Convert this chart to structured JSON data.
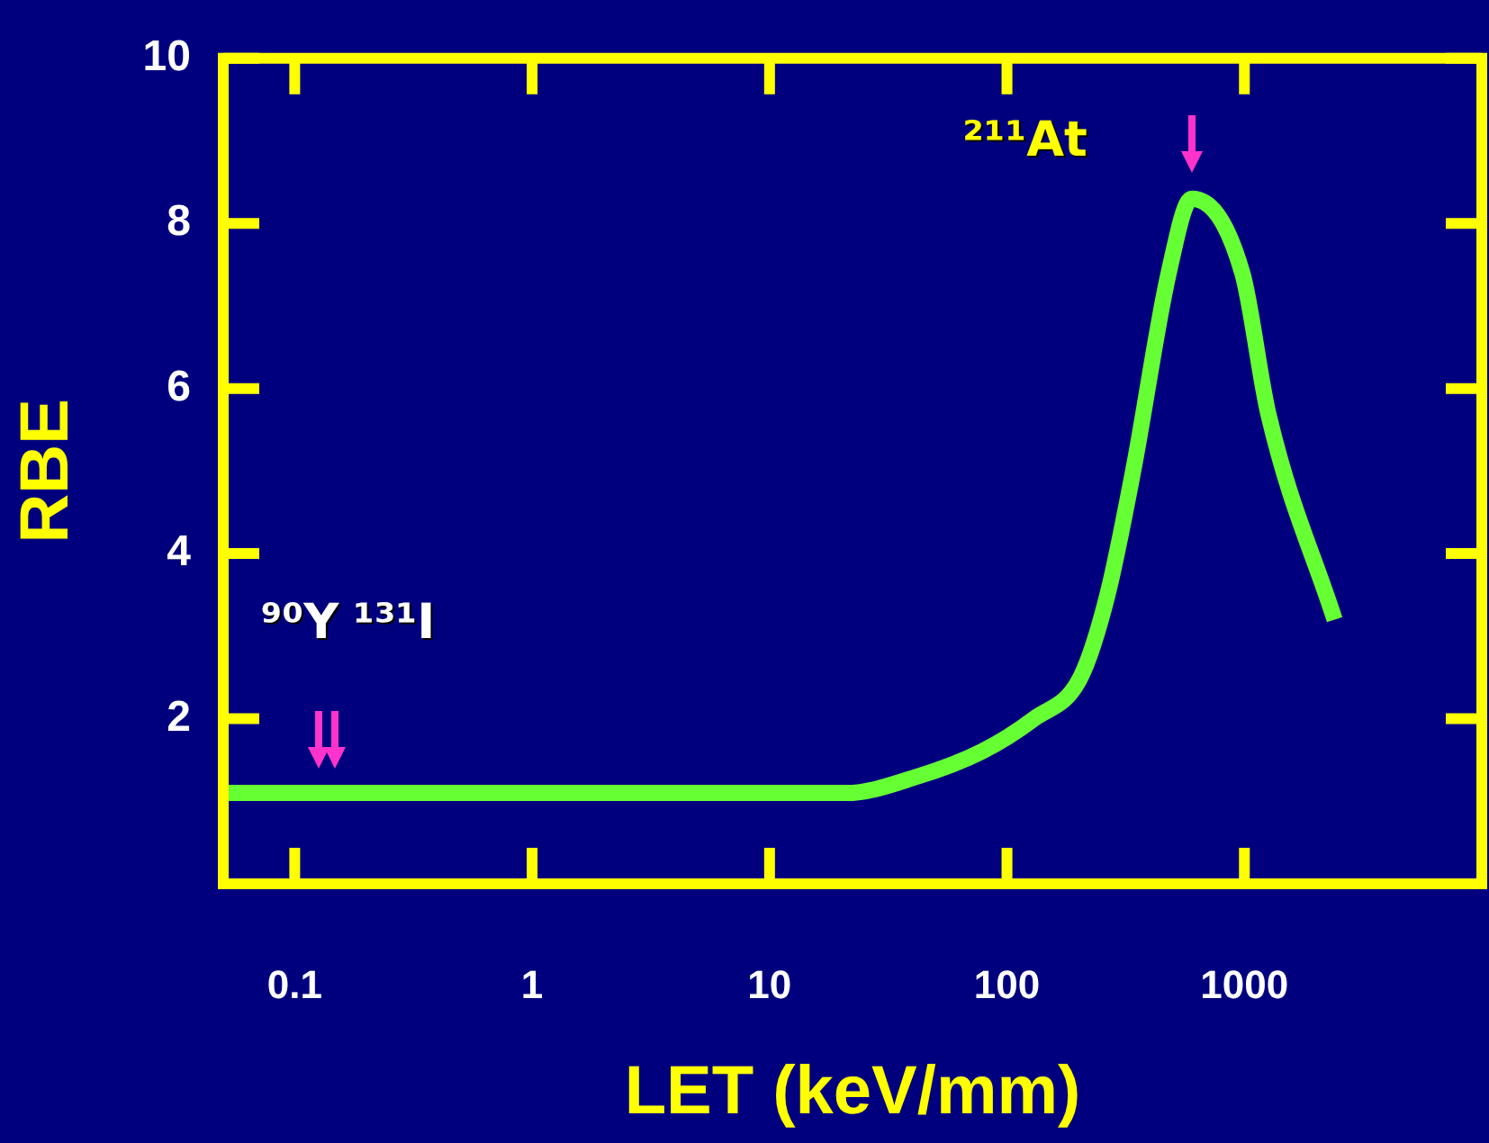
{
  "chart_data": {
    "type": "line",
    "xlabel": "LET (keV/mm)",
    "ylabel": "RBE",
    "log": "x",
    "xlim": [
      0.05,
      10000
    ],
    "xticks": [
      0.1,
      1,
      10,
      100,
      1000
    ],
    "ylim": [
      0,
      10
    ],
    "yticks": [
      2,
      4,
      6,
      8,
      10
    ],
    "grid": false,
    "legend": false,
    "marker": "none",
    "line_style": "solid",
    "series": [
      {
        "color": "#66ff33",
        "x": [
          0.05,
          21,
          42,
          78,
          130,
          204,
          265,
          340,
          480,
          600,
          980,
          1260,
          2400
        ],
        "values": [
          1.1,
          1.1,
          1.3,
          1.6,
          2.0,
          2.5,
          3.5,
          5.0,
          7.4,
          8.3,
          7.4,
          5.7,
          3.2
        ]
      }
    ],
    "annotations": [
      {
        "text": "⁹⁰Y",
        "x": 0.126,
        "y": 1.1
      },
      {
        "text": "¹³¹I",
        "x": 0.148,
        "y": 1.1
      },
      {
        "text": "²¹¹At",
        "x": 600,
        "y": 8.3
      }
    ]
  }
}
